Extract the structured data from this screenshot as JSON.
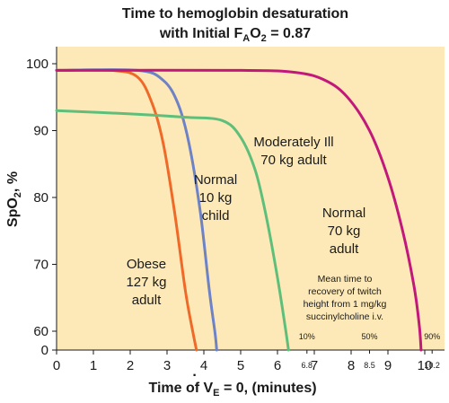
{
  "chart_data": {
    "type": "line",
    "title": {
      "line1": "Time to hemoglobin desaturation",
      "line2_prefix": "with Initial F",
      "line2_sub1": "A",
      "line2_mid": "O",
      "line2_sub2": "2",
      "line2_suffix": " = 0.87"
    },
    "xlabel": {
      "prefix": "Time of ",
      "v": "V",
      "vdot": "·",
      "sub": "E",
      "suffix": " = 0, (minutes)"
    },
    "ylabel": {
      "prefix": "SpO",
      "sub": "2",
      "suffix": ", %"
    },
    "xlim": [
      0,
      10.5
    ],
    "ylim": [
      0,
      100
    ],
    "x_ticks": [
      "0",
      "1",
      "2",
      "3",
      "4",
      "5",
      "6",
      "7",
      "8",
      "9",
      "10"
    ],
    "x_ticks_small": [
      "6.8",
      "8.5",
      "10.2"
    ],
    "y_ticks": [
      "0",
      "60",
      "70",
      "80",
      "90",
      "100"
    ],
    "y_scale_note": "broken axis: 0 then 60–100",
    "grid": false,
    "background": "#fde9b7",
    "series": [
      {
        "name": "Obese 127 kg adult",
        "label_lines": [
          "Obese",
          "127 kg",
          "adult"
        ],
        "color": "#ef6a28",
        "points": [
          [
            0,
            99
          ],
          [
            1.5,
            99
          ],
          [
            2.2,
            98
          ],
          [
            2.6,
            94
          ],
          [
            2.9,
            88
          ],
          [
            3.2,
            78
          ],
          [
            3.5,
            66
          ],
          [
            3.7,
            58
          ],
          [
            3.8,
            0
          ]
        ]
      },
      {
        "name": "Normal 10 kg child",
        "label_lines": [
          "Normal",
          "10 kg",
          "child"
        ],
        "color": "#6e82c6",
        "points": [
          [
            0,
            99
          ],
          [
            2.2,
            99
          ],
          [
            2.9,
            97.5
          ],
          [
            3.3,
            94
          ],
          [
            3.6,
            88
          ],
          [
            3.9,
            78
          ],
          [
            4.15,
            66
          ],
          [
            4.3,
            58
          ],
          [
            4.35,
            0
          ]
        ]
      },
      {
        "name": "Moderately Ill 70 kg adult",
        "label_lines": [
          "Moderately Ill",
          "70 kg adult"
        ],
        "color": "#5fbf7a",
        "points": [
          [
            0,
            93
          ],
          [
            2,
            92.5
          ],
          [
            3.5,
            92
          ],
          [
            4.5,
            91.5
          ],
          [
            5.0,
            89
          ],
          [
            5.4,
            84
          ],
          [
            5.7,
            77
          ],
          [
            6.0,
            68
          ],
          [
            6.2,
            61
          ],
          [
            6.3,
            0
          ]
        ]
      },
      {
        "name": "Normal 70 kg adult",
        "label_lines": [
          "Normal",
          "70 kg",
          "adult"
        ],
        "color": "#c2187a",
        "points": [
          [
            0,
            99
          ],
          [
            5,
            99
          ],
          [
            6.5,
            98.7
          ],
          [
            7.3,
            97.5
          ],
          [
            7.9,
            95
          ],
          [
            8.5,
            90
          ],
          [
            9.0,
            83
          ],
          [
            9.4,
            75
          ],
          [
            9.7,
            67
          ],
          [
            9.85,
            61
          ],
          [
            9.9,
            0
          ]
        ]
      }
    ],
    "annotation": {
      "lines": [
        "Mean time to",
        "recovery of twitch",
        "height from 1 mg/kg",
        "succinylcholine i.v."
      ],
      "percentages": [
        {
          "label": "10%",
          "x": 6.8
        },
        {
          "label": "50%",
          "x": 8.5
        },
        {
          "label": "90%",
          "x": 10.2
        }
      ]
    }
  }
}
